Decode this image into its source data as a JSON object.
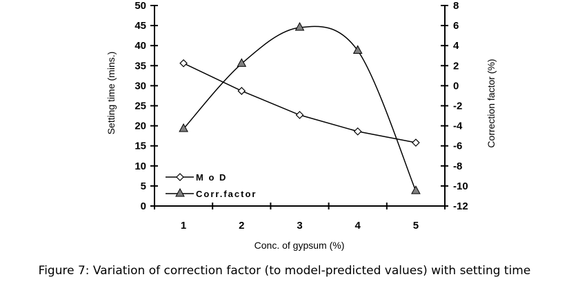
{
  "chart_data": {
    "type": "line",
    "title": "",
    "xlabel": "Conc. of gypsum (%)",
    "ylabel": "Setting time (mins.)",
    "y2label": "Correction factor (%)",
    "categories": [
      "1",
      "2",
      "3",
      "4",
      "5"
    ],
    "ylim": [
      0,
      50
    ],
    "y2lim": [
      -12,
      8
    ],
    "yticks": [
      "0",
      "5",
      "10",
      "15",
      "20",
      "25",
      "30",
      "35",
      "40",
      "45",
      "50"
    ],
    "y2ticks": [
      "-12",
      "-10",
      "-8",
      "-6",
      "-4",
      "-2",
      "0",
      "2",
      "4",
      "6",
      "8"
    ],
    "grid": false,
    "legend_position": "bottom-left",
    "series": [
      {
        "name": "M o D",
        "axis": "left",
        "marker": "diamond",
        "smooth": false,
        "values": [
          35.6,
          28.7,
          22.7,
          18.6,
          15.8
        ]
      },
      {
        "name": "Corr.factor",
        "axis": "right",
        "marker": "triangle",
        "smooth": true,
        "values": [
          -4.3,
          2.2,
          5.8,
          3.5,
          -10.5
        ]
      }
    ]
  },
  "caption": "Figure 7: Variation of correction factor (to model-predicted values) with setting time",
  "colors": {
    "line": "#000000",
    "triangle_fill": "#808080",
    "diamond_fill": "#ffffff"
  }
}
